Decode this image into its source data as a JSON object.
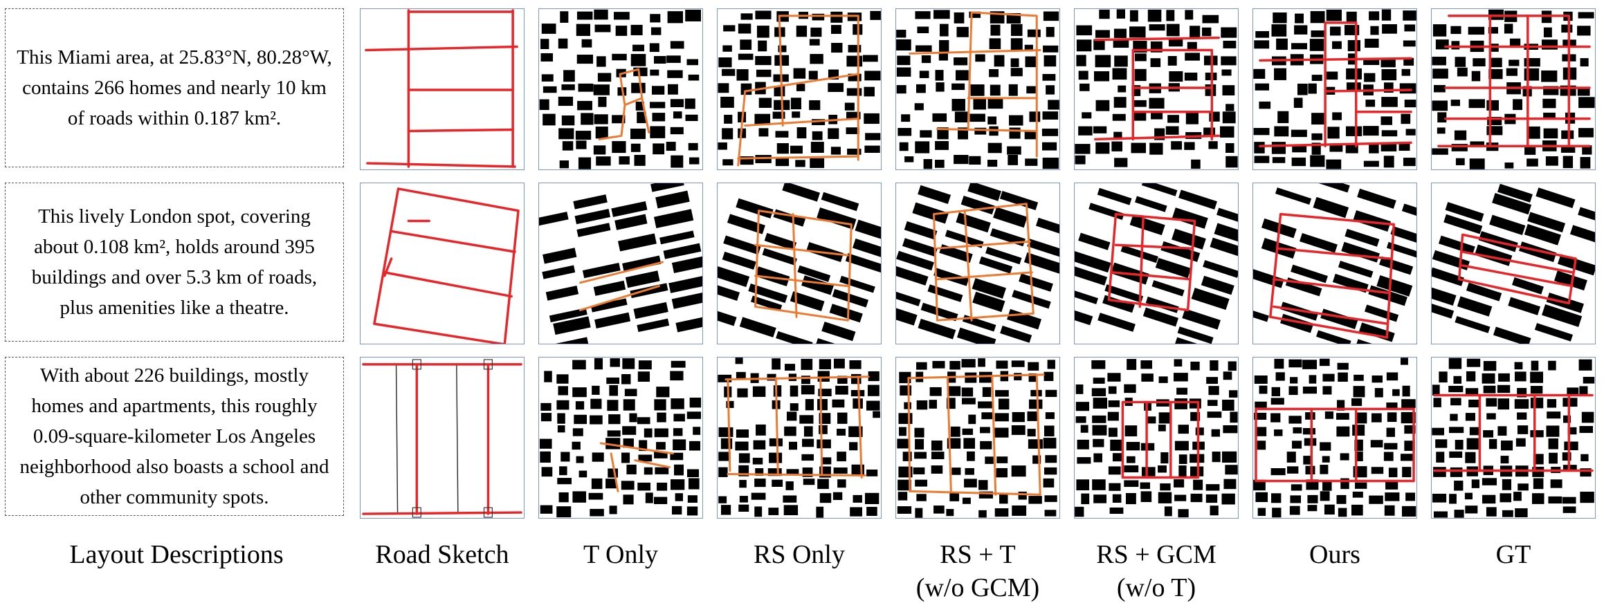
{
  "rows": [
    {
      "description": "This Miami area, at 25.83°N, 80.28°W, contains 266 homes and nearly 10 km of roads within 0.187 km²."
    },
    {
      "description": "This lively London spot, covering about 0.108 km², holds around 395 buildings and over 5.3 km of roads, plus amenities like a theatre."
    },
    {
      "description": "With about 226 buildings, mostly homes and apartments, this roughly 0.09-square-kilometer Los Angeles neighborhood also boasts a school and other community spots."
    }
  ],
  "columns": [
    {
      "line1": "Layout Descriptions",
      "line2": ""
    },
    {
      "line1": "Road Sketch",
      "line2": ""
    },
    {
      "line1": "T Only",
      "line2": ""
    },
    {
      "line1": "RS Only",
      "line2": ""
    },
    {
      "line1": "RS + T",
      "line2": "(w/o GCM)"
    },
    {
      "line1": "RS + GCM",
      "line2": "(w/o T)"
    },
    {
      "line1": "Ours",
      "line2": ""
    },
    {
      "line1": "GT",
      "line2": ""
    }
  ],
  "colors": {
    "road_red": "#e8262a",
    "road_orange": "#ee7a30",
    "building": "#000000",
    "frame": "#7a96c8"
  }
}
